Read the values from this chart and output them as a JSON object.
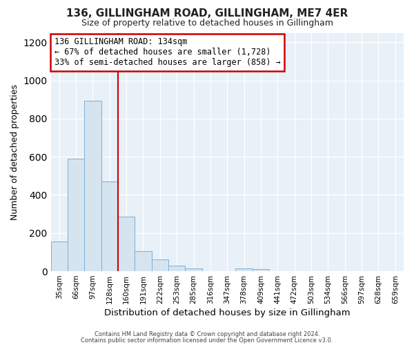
{
  "title": "136, GILLINGHAM ROAD, GILLINGHAM, ME7 4ER",
  "subtitle": "Size of property relative to detached houses in Gillingham",
  "xlabel": "Distribution of detached houses by size in Gillingham",
  "ylabel": "Number of detached properties",
  "bar_labels": [
    "35sqm",
    "66sqm",
    "97sqm",
    "128sqm",
    "160sqm",
    "191sqm",
    "222sqm",
    "253sqm",
    "285sqm",
    "316sqm",
    "347sqm",
    "378sqm",
    "409sqm",
    "441sqm",
    "472sqm",
    "503sqm",
    "534sqm",
    "566sqm",
    "597sqm",
    "628sqm",
    "659sqm"
  ],
  "bar_values": [
    155,
    590,
    895,
    470,
    285,
    105,
    62,
    28,
    15,
    0,
    0,
    15,
    10,
    0,
    0,
    0,
    0,
    0,
    0,
    0,
    0
  ],
  "bar_color": "#d6e4f0",
  "bar_edgecolor": "#7bafd4",
  "vline_x": 3.5,
  "vline_color": "#cc0000",
  "annotation_title": "136 GILLINGHAM ROAD: 134sqm",
  "annotation_line1": "← 67% of detached houses are smaller (1,728)",
  "annotation_line2": "33% of semi-detached houses are larger (858) →",
  "annotation_box_facecolor": "#ffffff",
  "annotation_box_edgecolor": "#cc0000",
  "ylim": [
    0,
    1250
  ],
  "yticks": [
    0,
    200,
    400,
    600,
    800,
    1000,
    1200
  ],
  "footer1": "Contains HM Land Registry data © Crown copyright and database right 2024.",
  "footer2": "Contains public sector information licensed under the Open Government Licence v3.0.",
  "bg_color": "#ffffff",
  "plot_bg_color": "#e8f0f8",
  "grid_color": "#ffffff",
  "title_fontsize": 11,
  "subtitle_fontsize": 9
}
